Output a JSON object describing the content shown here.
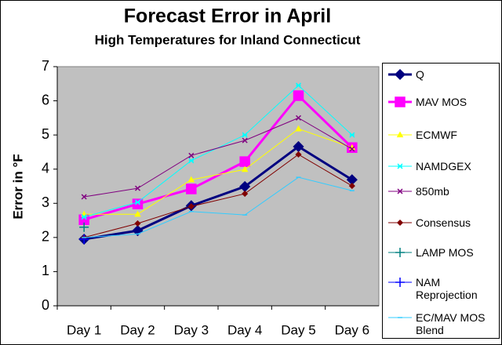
{
  "chart_data": {
    "type": "line",
    "title": "Forecast Error in April",
    "subtitle": "High Temperatures for Inland Connecticut",
    "y_label": "Error in °F",
    "categories": [
      "Day 1",
      "Day 2",
      "Day 3",
      "Day 4",
      "Day 5",
      "Day 6"
    ],
    "ylim": [
      0,
      7
    ],
    "yticks": [
      0,
      1,
      2,
      3,
      4,
      5,
      6,
      7
    ],
    "legend": "right",
    "series": [
      {
        "name": "Q",
        "color": "#000080",
        "marker": "diamond",
        "line_width": 3,
        "values": [
          1.95,
          2.2,
          2.93,
          3.49,
          4.66,
          3.69
        ]
      },
      {
        "name": "MAV MOS",
        "color": "#ff00ff",
        "marker": "square",
        "line_width": 3,
        "values": [
          2.52,
          2.98,
          3.42,
          4.22,
          6.15,
          4.63
        ]
      },
      {
        "name": "ECMWF",
        "color": "#ffff00",
        "marker": "triangle",
        "line_width": 1,
        "values": [
          2.68,
          2.68,
          3.69,
          3.99,
          5.18,
          4.63
        ]
      },
      {
        "name": "NAMDGEX",
        "color": "#00ffff",
        "marker": "star",
        "line_width": 1,
        "values": [
          2.6,
          3.03,
          4.25,
          5.0,
          6.45,
          5.0
        ]
      },
      {
        "name": "850mb",
        "color": "#800080",
        "marker": "x",
        "line_width": 1,
        "values": [
          3.19,
          3.44,
          4.4,
          4.84,
          5.5,
          4.59
        ]
      },
      {
        "name": "Consensus",
        "color": "#800000",
        "marker": "diamond",
        "line_width": 1,
        "values": [
          2.0,
          2.41,
          2.91,
          3.28,
          4.43,
          3.51
        ]
      },
      {
        "name": "LAMP MOS",
        "color": "#008080",
        "marker": "plus",
        "line_width": 1,
        "values": [
          2.3,
          null,
          null,
          null,
          null,
          null
        ]
      },
      {
        "name": "NAM Reprojection",
        "color": "#0000ff",
        "marker": "plus",
        "line_width": 1,
        "values": [
          1.95,
          null,
          null,
          null,
          null,
          null
        ]
      },
      {
        "name": "EC/MAV MOS Blend",
        "color": "#33ccff",
        "marker": "dash",
        "line_width": 1,
        "values": [
          2.0,
          2.1,
          2.76,
          2.66,
          3.76,
          3.37
        ]
      }
    ]
  }
}
